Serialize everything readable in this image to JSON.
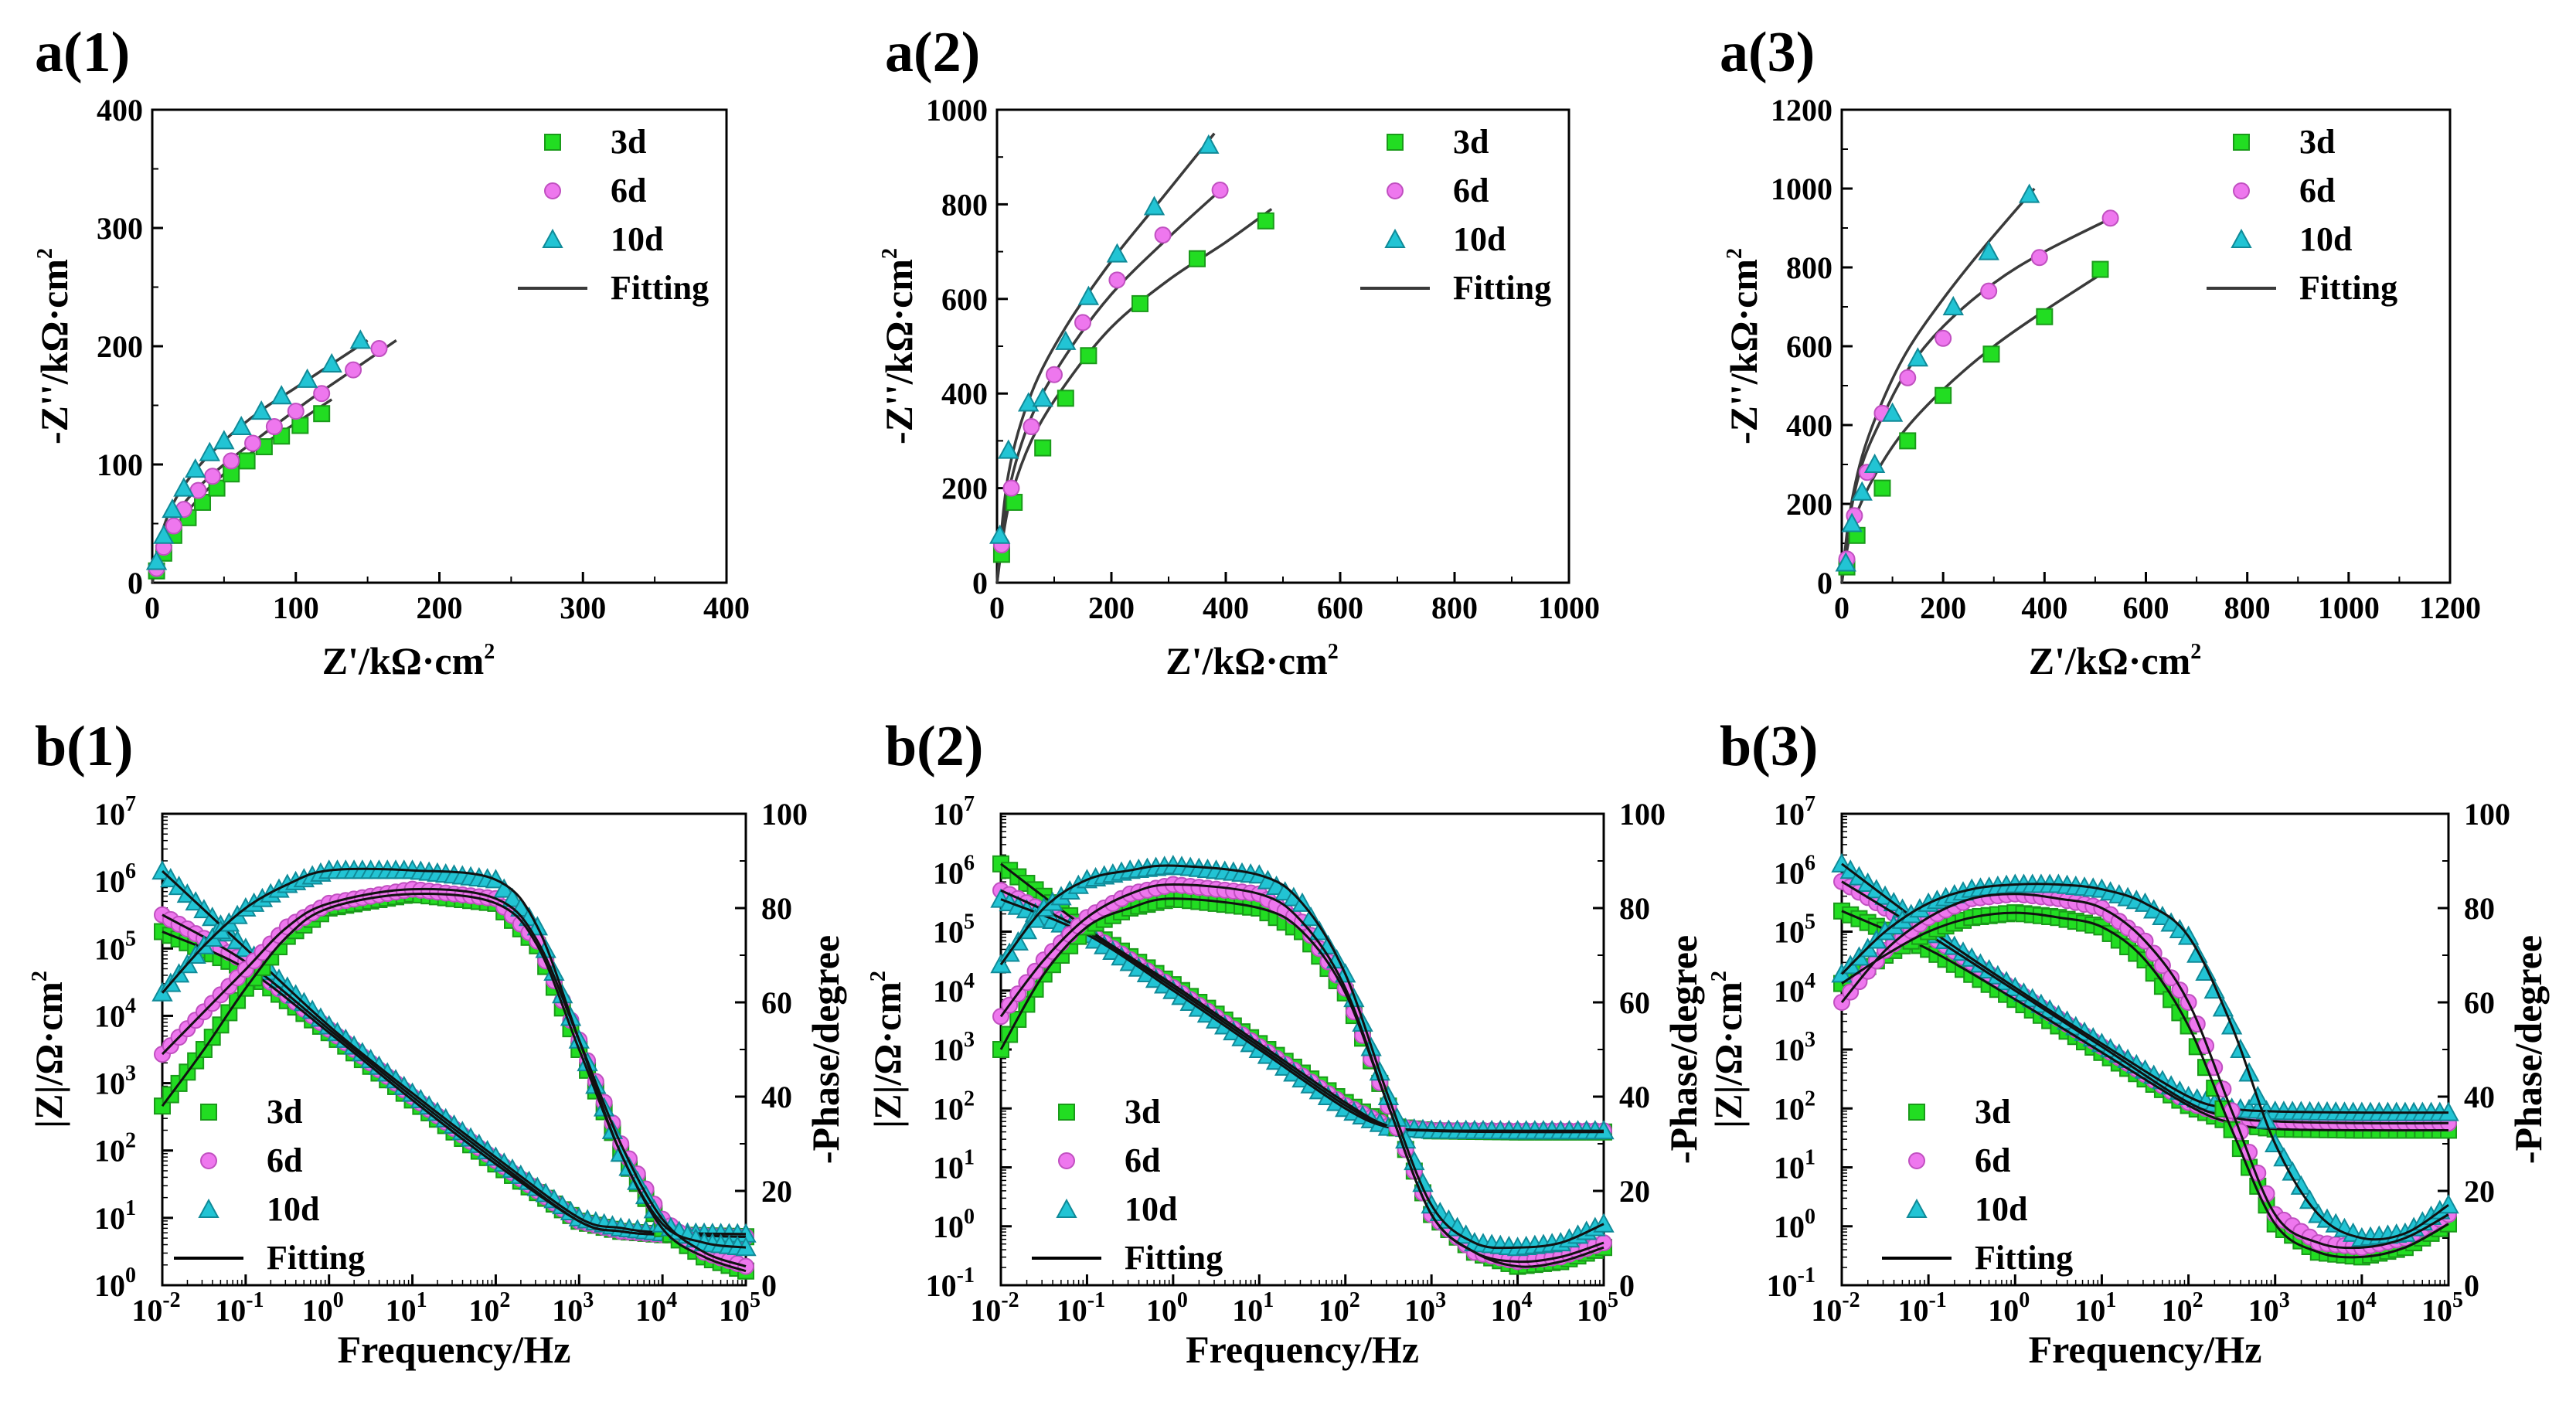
{
  "colors": {
    "d3": "#22dd22",
    "d6": "#ee77ee",
    "d10": "#22c4d4",
    "fit": "#3a3a3a",
    "axis": "#000000"
  },
  "legend": {
    "d3": "3d",
    "d6": "6d",
    "d10": "10d",
    "fit": "Fitting"
  },
  "chart_data": [
    {
      "id": "a1",
      "type": "scatter",
      "panel_label": "a(1)",
      "xlabel": "Z'/kΩ·cm2",
      "ylabel": "-Z''/kΩ·cm2",
      "xlim": [
        0,
        400
      ],
      "ylim": [
        0,
        400
      ],
      "xticks": [
        "0",
        "100",
        "200",
        "300",
        "400"
      ],
      "yticks": [
        "0",
        "100",
        "200",
        "300",
        "400"
      ],
      "series": [
        {
          "name": "3d",
          "x": [
            3,
            8,
            15,
            25,
            35,
            45,
            55,
            66,
            78,
            90,
            103,
            118
          ],
          "y": [
            10,
            25,
            40,
            55,
            68,
            80,
            92,
            103,
            115,
            124,
            133,
            143
          ]
        },
        {
          "name": "6d",
          "x": [
            3,
            8,
            15,
            22,
            32,
            42,
            55,
            70,
            85,
            100,
            118,
            140,
            158
          ],
          "y": [
            12,
            30,
            48,
            62,
            78,
            90,
            103,
            118,
            132,
            145,
            160,
            180,
            198
          ]
        },
        {
          "name": "10d",
          "x": [
            3,
            8,
            14,
            22,
            30,
            40,
            50,
            62,
            76,
            90,
            108,
            125,
            145
          ],
          "y": [
            18,
            40,
            62,
            80,
            96,
            110,
            120,
            132,
            145,
            158,
            172,
            185,
            205
          ]
        }
      ],
      "fits": [
        {
          "name": "3d",
          "x": [
            0,
            5,
            15,
            30,
            50,
            75,
            100,
            125
          ],
          "y": [
            0,
            22,
            45,
            68,
            92,
            115,
            135,
            155
          ]
        },
        {
          "name": "6d",
          "x": [
            0,
            5,
            15,
            30,
            50,
            80,
            110,
            140,
            170
          ],
          "y": [
            0,
            28,
            55,
            78,
            100,
            128,
            155,
            180,
            205
          ]
        },
        {
          "name": "10d",
          "x": [
            0,
            5,
            15,
            30,
            50,
            75,
            100,
            125,
            150
          ],
          "y": [
            0,
            35,
            68,
            95,
            120,
            145,
            165,
            185,
            205
          ]
        }
      ]
    },
    {
      "id": "a2",
      "type": "scatter",
      "panel_label": "a(2)",
      "xlabel": "Z'/kΩ·cm2",
      "ylabel": "-Z''/kΩ·cm2",
      "xlim": [
        0,
        1000
      ],
      "ylim": [
        0,
        1000
      ],
      "xticks": [
        "0",
        "200",
        "400",
        "600",
        "800",
        "1000"
      ],
      "yticks": [
        "0",
        "200",
        "400",
        "600",
        "800",
        "1000"
      ],
      "series": [
        {
          "name": "3d",
          "x": [
            8,
            30,
            80,
            120,
            160,
            250,
            350,
            470
          ],
          "y": [
            60,
            170,
            285,
            390,
            480,
            590,
            685,
            765
          ]
        },
        {
          "name": "6d",
          "x": [
            8,
            25,
            60,
            100,
            150,
            210,
            290,
            390
          ],
          "y": [
            80,
            200,
            330,
            440,
            550,
            640,
            735,
            830
          ]
        },
        {
          "name": "10d",
          "x": [
            5,
            20,
            55,
            80,
            120,
            160,
            210,
            275,
            370
          ],
          "y": [
            100,
            280,
            380,
            390,
            510,
            605,
            695,
            795,
            925
          ]
        }
      ],
      "fits": [
        {
          "name": "3d",
          "x": [
            0,
            20,
            60,
            120,
            200,
            300,
            400,
            480
          ],
          "y": [
            0,
            160,
            300,
            420,
            540,
            640,
            720,
            790
          ]
        },
        {
          "name": "6d",
          "x": [
            0,
            20,
            60,
            120,
            200,
            300,
            400
          ],
          "y": [
            0,
            190,
            350,
            480,
            610,
            730,
            840
          ]
        },
        {
          "name": "10d",
          "x": [
            0,
            20,
            60,
            120,
            200,
            280,
            380
          ],
          "y": [
            0,
            230,
            400,
            540,
            680,
            800,
            950
          ]
        }
      ]
    },
    {
      "id": "a3",
      "type": "scatter",
      "panel_label": "a(3)",
      "xlabel": "Z'/kΩ·cm2",
      "ylabel": "-Z''/kΩ·cm2",
      "xlim": [
        0,
        1200
      ],
      "ylim": [
        0,
        1200
      ],
      "xticks": [
        "0",
        "200",
        "400",
        "600",
        "800",
        "1000",
        "1200"
      ],
      "yticks": [
        "0",
        "200",
        "400",
        "600",
        "800",
        "1000",
        "1200"
      ],
      "series": [
        {
          "name": "3d",
          "x": [
            10,
            30,
            80,
            130,
            200,
            295,
            400,
            510
          ],
          "y": [
            40,
            120,
            240,
            360,
            475,
            580,
            675,
            795
          ]
        },
        {
          "name": "6d",
          "x": [
            10,
            25,
            50,
            80,
            130,
            200,
            290,
            390,
            530
          ],
          "y": [
            60,
            170,
            280,
            430,
            520,
            620,
            740,
            825,
            925
          ]
        },
        {
          "name": "10d",
          "x": [
            8,
            20,
            40,
            65,
            100,
            150,
            220,
            290,
            370
          ],
          "y": [
            50,
            150,
            230,
            300,
            430,
            570,
            700,
            840,
            985
          ]
        }
      ],
      "fits": [
        {
          "name": "3d",
          "x": [
            0,
            20,
            60,
            120,
            200,
            300,
            400,
            520
          ],
          "y": [
            0,
            140,
            260,
            380,
            490,
            600,
            690,
            790
          ]
        },
        {
          "name": "6d",
          "x": [
            0,
            15,
            40,
            80,
            130,
            200,
            300,
            400,
            540
          ],
          "y": [
            0,
            160,
            300,
            420,
            540,
            650,
            760,
            840,
            930
          ]
        },
        {
          "name": "10d",
          "x": [
            0,
            15,
            40,
            80,
            130,
            200,
            280,
            380
          ],
          "y": [
            0,
            170,
            320,
            460,
            590,
            720,
            850,
            1000
          ]
        }
      ]
    },
    {
      "id": "b1",
      "type": "line",
      "panel_label": "b(1)",
      "xlabel": "Frequency/Hz",
      "ylabel": "|Z|/Ω·cm2",
      "y2label": "-Phase/degree",
      "xlim_log": [
        -2,
        5
      ],
      "ylim_log": [
        0,
        7
      ],
      "y2lim": [
        0,
        100
      ],
      "xtick_exp": [
        "-2",
        "-1",
        "0",
        "1",
        "2",
        "3",
        "4",
        "5"
      ],
      "ytick_exp": [
        "0",
        "1",
        "2",
        "3",
        "4",
        "5",
        "6",
        "7"
      ],
      "y2ticks": [
        "0",
        "20",
        "40",
        "60",
        "80",
        "100"
      ],
      "modulus": [
        {
          "name": "3d",
          "logf": [
            -2,
            -1,
            0,
            1,
            2,
            3,
            3.5,
            4,
            5
          ],
          "logz": [
            5.25,
            4.7,
            3.75,
            2.75,
            1.8,
            0.95,
            0.8,
            0.75,
            0.72
          ]
        },
        {
          "name": "6d",
          "logf": [
            -2,
            -1,
            0,
            1,
            2,
            3,
            3.5,
            4,
            5
          ],
          "logz": [
            5.5,
            4.8,
            3.8,
            2.8,
            1.85,
            0.95,
            0.8,
            0.75,
            0.72
          ]
        },
        {
          "name": "10d",
          "logf": [
            -2,
            -1,
            0,
            1,
            2,
            3,
            3.5,
            4,
            5
          ],
          "logz": [
            6.15,
            5.0,
            3.85,
            2.85,
            1.9,
            1.0,
            0.85,
            0.78,
            0.76
          ]
        }
      ],
      "phase": [
        {
          "name": "3d",
          "logf": [
            -2,
            -1.5,
            -1,
            -0.5,
            0,
            1,
            2,
            2.5,
            3,
            3.5,
            4,
            4.5,
            5
          ],
          "phase": [
            38,
            50,
            63,
            74,
            80,
            83,
            81,
            72,
            50,
            28,
            12,
            6,
            3
          ]
        },
        {
          "name": "6d",
          "logf": [
            -2,
            -1.5,
            -1,
            -0.5,
            0,
            1,
            2,
            2.5,
            3,
            3.5,
            4,
            4.5,
            5
          ],
          "phase": [
            49,
            58,
            67,
            76,
            81,
            84,
            82,
            73,
            52,
            30,
            14,
            7,
            4
          ]
        },
        {
          "name": "10d",
          "logf": [
            -2,
            -1.5,
            -1,
            -0.5,
            0,
            1,
            2,
            2.5,
            3,
            3.5,
            4,
            4.5,
            5
          ],
          "phase": [
            62,
            72,
            80,
            85,
            88,
            88,
            86,
            76,
            52,
            28,
            13,
            9,
            8
          ]
        }
      ]
    },
    {
      "id": "b2",
      "type": "line",
      "panel_label": "b(2)",
      "xlabel": "Frequency/Hz",
      "ylabel": "|Z|/Ω·cm2",
      "y2label": "-Phase/degree",
      "xlim_log": [
        -2,
        5
      ],
      "ylim_log": [
        -1,
        7
      ],
      "y2lim": [
        0,
        100
      ],
      "xtick_exp": [
        "-2",
        "-1",
        "0",
        "1",
        "2",
        "3",
        "4",
        "5"
      ],
      "ytick_exp": [
        "-1",
        "0",
        "1",
        "2",
        "3",
        "4",
        "5",
        "6",
        "7"
      ],
      "y2ticks": [
        "0",
        "20",
        "40",
        "60",
        "80",
        "100"
      ],
      "modulus": [
        {
          "name": "3d",
          "logf": [
            -2,
            -1,
            0,
            1,
            2,
            2.5,
            3,
            4,
            5
          ],
          "logz": [
            6.15,
            5.05,
            4.1,
            3.1,
            2.1,
            1.7,
            1.62,
            1.6,
            1.6
          ]
        },
        {
          "name": "6d",
          "logf": [
            -2,
            -1,
            0,
            1,
            2,
            2.5,
            3,
            4,
            5
          ],
          "logz": [
            5.7,
            5.0,
            4.05,
            3.05,
            2.05,
            1.7,
            1.63,
            1.62,
            1.62
          ]
        },
        {
          "name": "10d",
          "logf": [
            -2,
            -1,
            0,
            1,
            2,
            2.5,
            3,
            4,
            5
          ],
          "logz": [
            5.55,
            4.95,
            4.0,
            3.0,
            2.0,
            1.68,
            1.63,
            1.62,
            1.62
          ]
        }
      ],
      "phase": [
        {
          "name": "3d",
          "logf": [
            -2,
            -1.5,
            -1,
            -0.5,
            0,
            1,
            1.5,
            2,
            2.5,
            3,
            3.5,
            4,
            4.5,
            5
          ],
          "phase": [
            50,
            66,
            76,
            80,
            82,
            80,
            75,
            62,
            38,
            15,
            7,
            4,
            5,
            8
          ]
        },
        {
          "name": "6d",
          "logf": [
            -2,
            -1.5,
            -1,
            -0.5,
            0,
            1,
            1.5,
            2,
            2.5,
            3,
            3.5,
            4,
            4.5,
            5
          ],
          "phase": [
            57,
            69,
            78,
            83,
            85,
            83,
            77,
            63,
            38,
            15,
            7,
            5,
            6,
            9
          ]
        },
        {
          "name": "10d",
          "logf": [
            -2,
            -1.5,
            -1,
            -0.5,
            0,
            1,
            1.5,
            2,
            2.5,
            3,
            3.5,
            4,
            4.5,
            5
          ],
          "phase": [
            68,
            80,
            86,
            88,
            89,
            87,
            81,
            66,
            40,
            17,
            9,
            8,
            9,
            13
          ]
        }
      ]
    },
    {
      "id": "b3",
      "type": "line",
      "panel_label": "b(3)",
      "xlabel": "Frequency/Hz",
      "ylabel": "|Z|/Ω·cm2",
      "y2label": "-Phase/degree",
      "xlim_log": [
        -2,
        5
      ],
      "ylim_log": [
        -1,
        7
      ],
      "y2lim": [
        0,
        100
      ],
      "xtick_exp": [
        "-2",
        "-1",
        "0",
        "1",
        "2",
        "3",
        "4",
        "5"
      ],
      "ytick_exp": [
        "-1",
        "0",
        "1",
        "2",
        "3",
        "4",
        "5",
        "6",
        "7"
      ],
      "y2ticks": [
        "0",
        "20",
        "40",
        "60",
        "80",
        "100"
      ],
      "modulus": [
        {
          "name": "3d",
          "logf": [
            -2,
            -1,
            0,
            1,
            2,
            2.5,
            3,
            4,
            5
          ],
          "logz": [
            5.35,
            4.7,
            3.85,
            2.95,
            2.05,
            1.75,
            1.65,
            1.63,
            1.63
          ]
        },
        {
          "name": "6d",
          "logf": [
            -2,
            -1,
            0,
            1,
            2,
            2.5,
            3,
            4,
            5
          ],
          "logz": [
            5.85,
            4.95,
            4.0,
            3.05,
            2.1,
            1.85,
            1.78,
            1.75,
            1.75
          ]
        },
        {
          "name": "10d",
          "logf": [
            -2,
            -1,
            0,
            1,
            2,
            2.5,
            3,
            4,
            5
          ],
          "logz": [
            6.15,
            5.05,
            4.05,
            3.1,
            2.2,
            2.0,
            1.95,
            1.93,
            1.93
          ]
        }
      ],
      "phase": [
        {
          "name": "3d",
          "logf": [
            -2,
            -1.5,
            -1,
            -0.5,
            0,
            0.5,
            1,
            1.5,
            2,
            2.5,
            3,
            3.5,
            4,
            4.5,
            5
          ],
          "phase": [
            64,
            70,
            75,
            78,
            79,
            78,
            76,
            69,
            55,
            33,
            13,
            7,
            6,
            8,
            13
          ]
        },
        {
          "name": "6d",
          "logf": [
            -2,
            -1.5,
            -1,
            -0.5,
            0,
            0.5,
            1,
            1.5,
            2,
            2.5,
            3,
            3.5,
            4,
            4.5,
            5
          ],
          "phase": [
            60,
            71,
            78,
            82,
            83,
            82,
            80,
            73,
            60,
            37,
            15,
            9,
            8,
            10,
            15
          ]
        },
        {
          "name": "10d",
          "logf": [
            -2,
            -1.5,
            -1,
            -0.5,
            0,
            0.5,
            1,
            1.5,
            2,
            2.5,
            3,
            3.5,
            4,
            4.5,
            5
          ],
          "phase": [
            66,
            75,
            81,
            84,
            85,
            85,
            84,
            81,
            74,
            55,
            30,
            15,
            10,
            11,
            17
          ]
        }
      ]
    }
  ]
}
